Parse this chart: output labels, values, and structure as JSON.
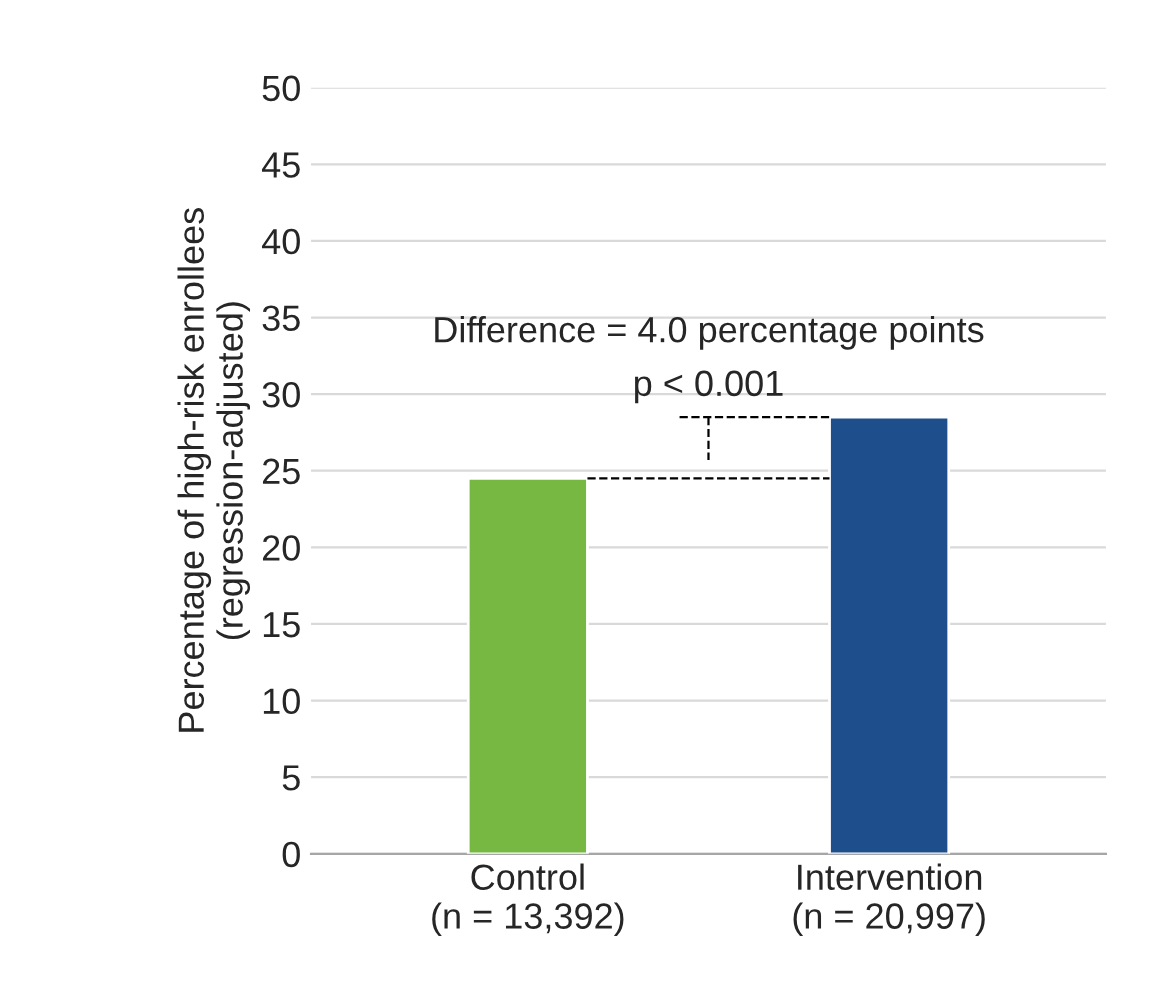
{
  "chart_data": {
    "type": "bar",
    "categories": [
      "Control\n(n = 13,392)",
      "Intervention\n(n = 20,997)"
    ],
    "series": [
      {
        "colors": [
          "#77b843",
          "#1f4e8c"
        ],
        "values": [
          24.5,
          28.5
        ]
      }
    ],
    "ylabel": "Percentage of high-risk enrollees\n(regression-adjusted)",
    "ylim": [
      0,
      50
    ],
    "yticks": [
      0,
      5,
      10,
      15,
      20,
      25,
      30,
      35,
      40,
      45,
      50
    ],
    "grid": "y",
    "legend": false,
    "annotations": [
      "Difference = 4.0 percentage points",
      "p < 0.001"
    ]
  }
}
